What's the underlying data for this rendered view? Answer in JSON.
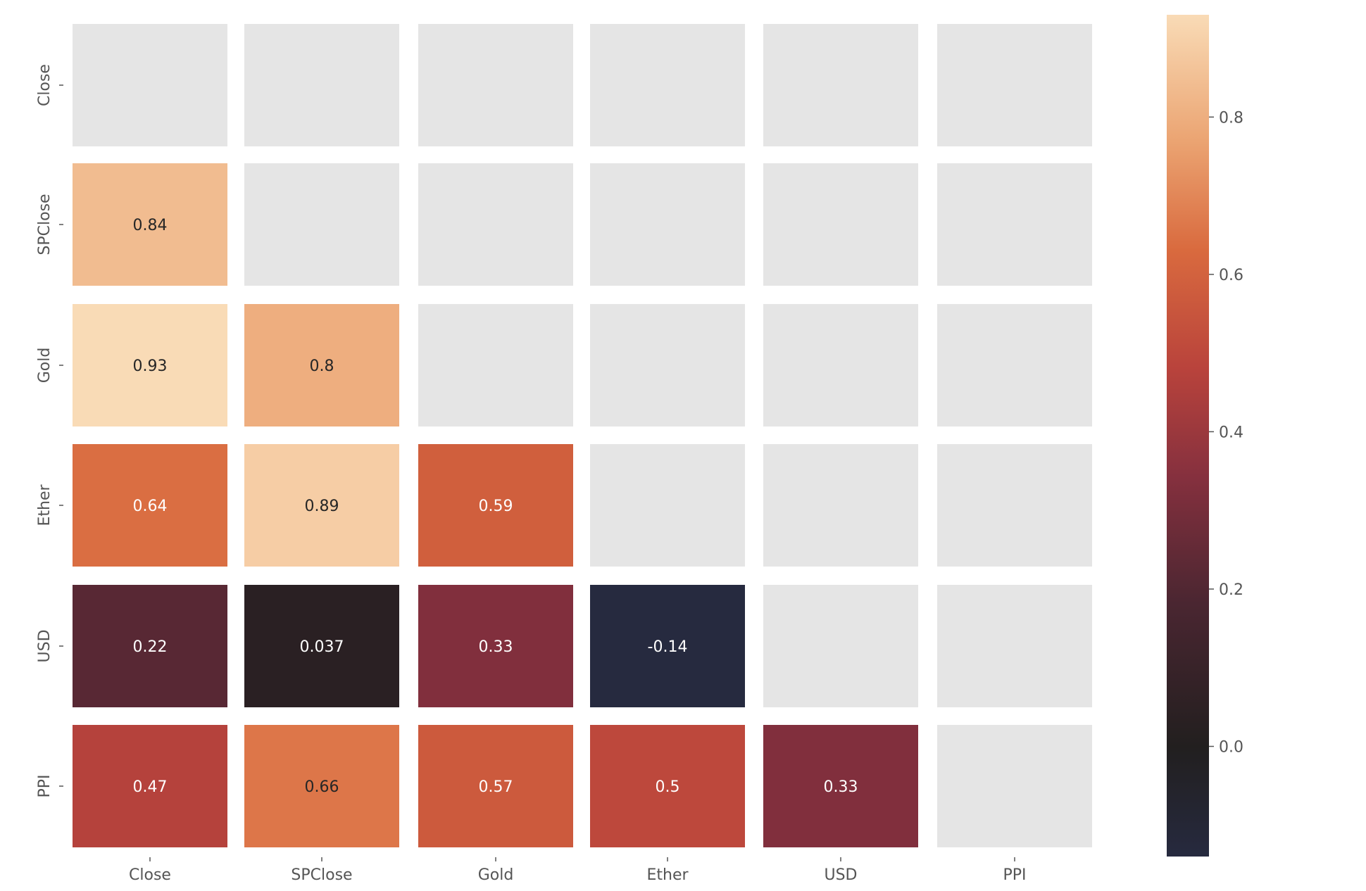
{
  "chart_data": {
    "type": "heatmap",
    "title": "",
    "xlabel": "",
    "ylabel": "",
    "x_labels": [
      "Close",
      "SPClose",
      "Gold",
      "Ether",
      "USD",
      "PPI"
    ],
    "y_labels": [
      "Close",
      "SPClose",
      "Gold",
      "Ether",
      "USD",
      "PPI"
    ],
    "mask": "upper triangle including diagonal",
    "mask_color": "#e5e5e5",
    "values": [
      [
        null,
        null,
        null,
        null,
        null,
        null
      ],
      [
        0.84,
        null,
        null,
        null,
        null,
        null
      ],
      [
        0.93,
        0.8,
        null,
        null,
        null,
        null
      ],
      [
        0.64,
        0.89,
        0.59,
        null,
        null,
        null
      ],
      [
        0.22,
        0.037,
        0.33,
        -0.14,
        null,
        null
      ],
      [
        0.47,
        0.66,
        0.57,
        0.5,
        0.33,
        null
      ]
    ],
    "cell_labels": [
      [
        null,
        null,
        null,
        null,
        null,
        null
      ],
      [
        "0.84",
        null,
        null,
        null,
        null,
        null
      ],
      [
        "0.93",
        "0.8",
        null,
        null,
        null,
        null
      ],
      [
        "0.64",
        "0.89",
        "0.59",
        null,
        null,
        null
      ],
      [
        "0.22",
        "0.037",
        "0.33",
        "-0.14",
        null,
        null
      ],
      [
        "0.47",
        "0.66",
        "0.57",
        "0.5",
        "0.33",
        null
      ]
    ],
    "colorbar": {
      "vmin": -0.14,
      "vmax": 0.93,
      "ticks": [
        0.8,
        0.6,
        0.4,
        0.2,
        0.0
      ],
      "tick_labels": [
        "0.8",
        "0.6",
        "0.4",
        "0.2",
        "0.0"
      ],
      "colormap": "icefire-like diverging (dark at 0, orange/cream at high)"
    },
    "grid": false,
    "legend": "colorbar right"
  }
}
